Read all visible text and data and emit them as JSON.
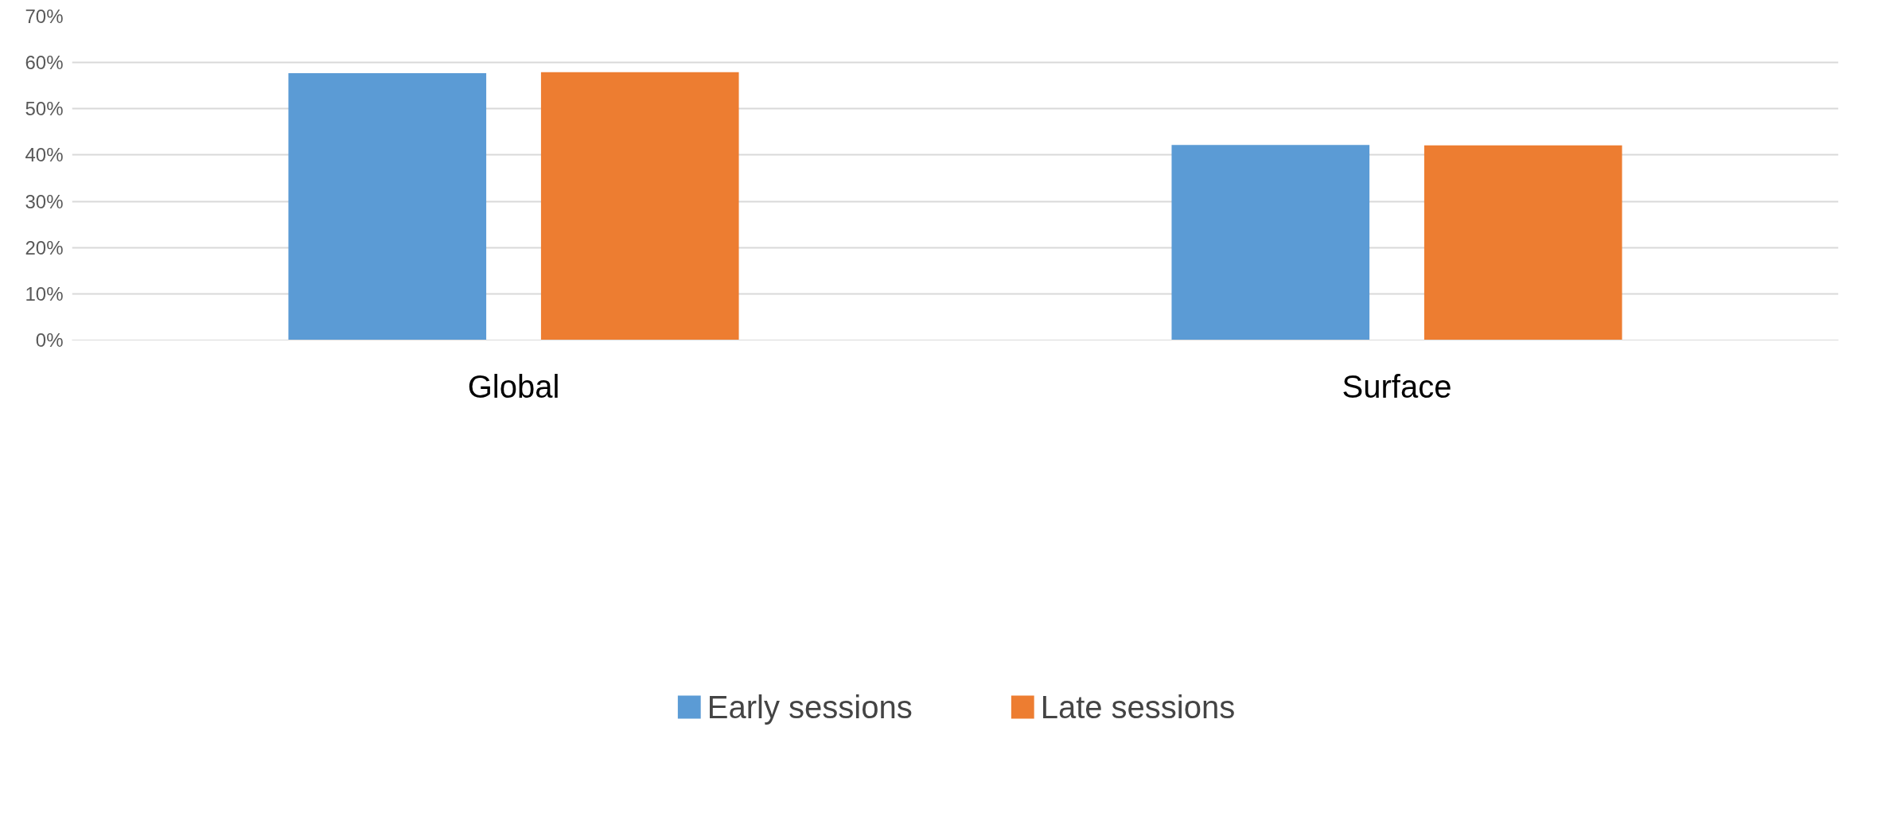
{
  "chart_data": {
    "type": "bar",
    "categories": [
      "Global",
      "Surface"
    ],
    "series": [
      {
        "name": "Early sessions",
        "color": "#5b9bd5",
        "values": [
          57.7,
          42.2
        ]
      },
      {
        "name": "Late sessions",
        "color": "#ed7d31",
        "values": [
          57.9,
          42.1
        ]
      }
    ],
    "ylim": [
      0,
      70
    ],
    "yticks": [
      {
        "value": 0,
        "label": "0%"
      },
      {
        "value": 10,
        "label": "10%"
      },
      {
        "value": 20,
        "label": "20%"
      },
      {
        "value": 30,
        "label": "30%"
      },
      {
        "value": 40,
        "label": "40%"
      },
      {
        "value": 50,
        "label": "50%"
      },
      {
        "value": 60,
        "label": "60%"
      },
      {
        "value": 70,
        "label": "70%"
      }
    ],
    "grid": "y",
    "legend": "bottom"
  }
}
